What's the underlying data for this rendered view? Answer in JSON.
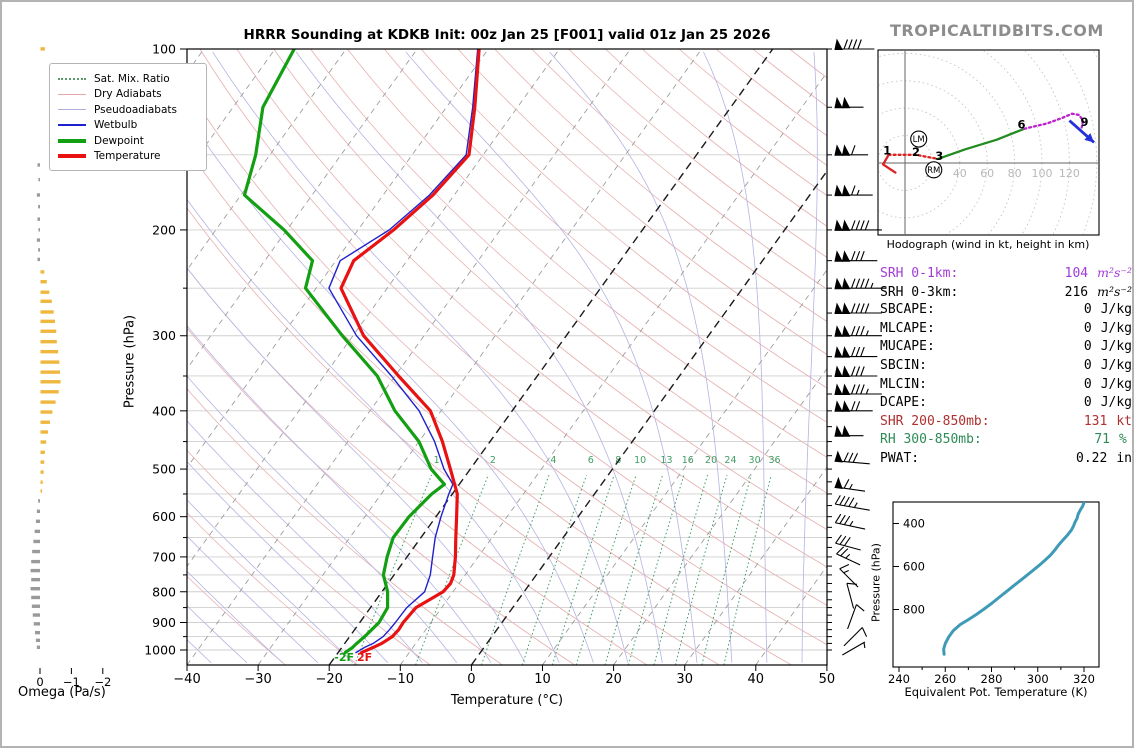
{
  "title": "HRRR Sounding at KDKB Init: 00z Jan 25 [F001] valid 01z Jan 25 2026",
  "branding": "TROPICALTIDBITS.COM",
  "skewt": {
    "xlabel": "Temperature (°C)",
    "ylabel": "Pressure (hPa)",
    "x_ticks": [
      -40,
      -30,
      -20,
      -10,
      0,
      10,
      20,
      30,
      40,
      50
    ],
    "p_ticks": [
      100,
      200,
      300,
      400,
      500,
      600,
      700,
      800,
      900,
      1000
    ],
    "mixratio_values": [
      1,
      2,
      4,
      6,
      8,
      10,
      13,
      16,
      20,
      24,
      30,
      36
    ],
    "surface_labels": [
      {
        "text": "-2F",
        "color": "#0fa00f"
      },
      {
        "text": "2F",
        "color": "#e81212"
      }
    ],
    "legend": [
      {
        "label": "Sat. Mix. Ratio",
        "style": "dotted",
        "color": "#5a9a6a"
      },
      {
        "label": "Dry Adiabats",
        "style": "thin",
        "color": "#e0a8a8"
      },
      {
        "label": "Pseudoadiabats",
        "style": "thin",
        "color": "#b0b0dc"
      },
      {
        "label": "Wetbulb",
        "style": "medium",
        "color": "#2020cc"
      },
      {
        "label": "Dewpoint",
        "style": "thick",
        "color": "#12a012"
      },
      {
        "label": "Temperature",
        "style": "thick",
        "color": "#e81212"
      }
    ]
  },
  "wind_barbs": {
    "units": "kt",
    "levels": [
      {
        "p": 100,
        "spd": 90,
        "rot": 0
      },
      {
        "p": 125,
        "spd": 100,
        "rot": 0
      },
      {
        "p": 150,
        "spd": 110,
        "rot": 0
      },
      {
        "p": 175,
        "spd": 115,
        "rot": 0
      },
      {
        "p": 200,
        "spd": 140,
        "rot": 0
      },
      {
        "p": 225,
        "spd": 130,
        "rot": 0
      },
      {
        "p": 250,
        "spd": 145,
        "rot": 0
      },
      {
        "p": 275,
        "spd": 140,
        "rot": 0
      },
      {
        "p": 300,
        "spd": 135,
        "rot": 0
      },
      {
        "p": 325,
        "spd": 130,
        "rot": 0
      },
      {
        "p": 350,
        "spd": 130,
        "rot": 0
      },
      {
        "p": 375,
        "spd": 135,
        "rot": 0
      },
      {
        "p": 400,
        "spd": 120,
        "rot": 0
      },
      {
        "p": 440,
        "spd": 100,
        "rot": 0
      },
      {
        "p": 487,
        "spd": 80,
        "rot": 5
      },
      {
        "p": 540,
        "spd": 65,
        "rot": 8
      },
      {
        "p": 578,
        "spd": 45,
        "rot": 10
      },
      {
        "p": 622,
        "spd": 35,
        "rot": 12
      },
      {
        "p": 675,
        "spd": 30,
        "rot": 15
      },
      {
        "p": 710,
        "spd": 25,
        "rot": 25
      },
      {
        "p": 765,
        "spd": 18,
        "rot": 45
      },
      {
        "p": 822,
        "spd": 12,
        "rot": 75
      },
      {
        "p": 890,
        "spd": 12,
        "rot": 110
      },
      {
        "p": 958,
        "spd": 10,
        "rot": 135
      },
      {
        "p": 1000,
        "spd": 8,
        "rot": 150
      }
    ]
  },
  "indices": {
    "rows": [
      {
        "label": "SRH 0-1km:",
        "value": "104",
        "unit": "m²s⁻²",
        "color": "#a23bd6",
        "unit_style": "math"
      },
      {
        "label": "SRH 0-3km:",
        "value": "216",
        "unit": "m²s⁻²",
        "color": "#000000",
        "unit_style": "math"
      },
      {
        "label": "SBCAPE:",
        "value": "0",
        "unit": "J/kg",
        "color": "#000000",
        "unit_style": ""
      },
      {
        "label": "MLCAPE:",
        "value": "0",
        "unit": "J/kg",
        "color": "#000000",
        "unit_style": ""
      },
      {
        "label": "MUCAPE:",
        "value": "0",
        "unit": "J/kg",
        "color": "#000000",
        "unit_style": ""
      },
      {
        "label": "SBCIN:",
        "value": "0",
        "unit": "J/kg",
        "color": "#000000",
        "unit_style": ""
      },
      {
        "label": "MLCIN:",
        "value": "0",
        "unit": "J/kg",
        "color": "#000000",
        "unit_style": ""
      },
      {
        "label": "DCAPE:",
        "value": "0",
        "unit": "J/kg",
        "color": "#000000",
        "unit_style": ""
      },
      {
        "label": "SHR 200-850mb:",
        "value": "131",
        "unit": "kt",
        "color": "#b03030",
        "unit_style": ""
      },
      {
        "label": "RH 300-850mb:",
        "value": "71",
        "unit": "%",
        "color": "#2e8b57",
        "unit_style": ""
      },
      {
        "label": "PWAT:",
        "value": "0.22",
        "unit": "in",
        "color": "#000000",
        "unit_style": ""
      }
    ]
  },
  "chart_data": [
    {
      "type": "line",
      "name": "skewt_sounding",
      "title": "HRRR Sounding at KDKB Init: 00z Jan 25 [F001] valid 01z Jan 25 2026",
      "xlabel": "Temperature (°C)",
      "ylabel": "Pressure (hPa)",
      "xlim": [
        -40,
        50
      ],
      "plim": [
        100,
        1050
      ],
      "series": [
        {
          "name": "Temperature",
          "color": "#e81212",
          "width": 3.2,
          "points": [
            [
              1010,
              -16.7
            ],
            [
              990,
              -15.6
            ],
            [
              975,
              -14.8
            ],
            [
              950,
              -14.0
            ],
            [
              925,
              -13.8
            ],
            [
              900,
              -13.9
            ],
            [
              850,
              -13.6
            ],
            [
              800,
              -11.4
            ],
            [
              775,
              -11.2
            ],
            [
              750,
              -11.6
            ],
            [
              700,
              -13.2
            ],
            [
              650,
              -15.1
            ],
            [
              600,
              -17.1
            ],
            [
              550,
              -19.3
            ],
            [
              500,
              -22.8
            ],
            [
              450,
              -26.7
            ],
            [
              400,
              -31.5
            ],
            [
              350,
              -39.5
            ],
            [
              300,
              -48.5
            ],
            [
              250,
              -56.5
            ],
            [
              225,
              -57.5
            ],
            [
              200,
              -55.0
            ],
            [
              175,
              -53.0
            ],
            [
              150,
              -52.0
            ],
            [
              125,
              -56.0
            ],
            [
              100,
              -61.3
            ]
          ]
        },
        {
          "name": "Dewpoint",
          "color": "#12a012",
          "width": 3.2,
          "points": [
            [
              1010,
              -19.0
            ],
            [
              990,
              -18.5
            ],
            [
              975,
              -18.3
            ],
            [
              950,
              -17.9
            ],
            [
              925,
              -17.6
            ],
            [
              900,
              -17.3
            ],
            [
              850,
              -17.6
            ],
            [
              800,
              -19.2
            ],
            [
              750,
              -21.5
            ],
            [
              700,
              -22.8
            ],
            [
              650,
              -23.9
            ],
            [
              600,
              -23.8
            ],
            [
              550,
              -22.9
            ],
            [
              530,
              -22.1
            ],
            [
              500,
              -25.5
            ],
            [
              450,
              -30.0
            ],
            [
              400,
              -36.5
            ],
            [
              350,
              -42.5
            ],
            [
              300,
              -51.5
            ],
            [
              250,
              -61.5
            ],
            [
              225,
              -63.3
            ],
            [
              200,
              -70.4
            ],
            [
              175,
              -79.5
            ],
            [
              150,
              -82.0
            ],
            [
              125,
              -85.8
            ],
            [
              100,
              -87.3
            ]
          ]
        },
        {
          "name": "Wetbulb",
          "color": "#2020cc",
          "width": 1.4,
          "points": [
            [
              1010,
              -17.5
            ],
            [
              990,
              -16.8
            ],
            [
              975,
              -16.0
            ],
            [
              950,
              -15.3
            ],
            [
              925,
              -15.1
            ],
            [
              900,
              -15.0
            ],
            [
              850,
              -14.9
            ],
            [
              800,
              -14.0
            ],
            [
              750,
              -14.9
            ],
            [
              700,
              -16.4
            ],
            [
              650,
              -18.0
            ],
            [
              600,
              -19.3
            ],
            [
              550,
              -20.5
            ],
            [
              530,
              -20.9
            ],
            [
              500,
              -23.7
            ],
            [
              450,
              -27.8
            ],
            [
              400,
              -33.1
            ],
            [
              350,
              -40.5
            ],
            [
              300,
              -49.5
            ],
            [
              250,
              -58.2
            ],
            [
              225,
              -59.4
            ],
            [
              200,
              -55.6
            ],
            [
              175,
              -53.5
            ],
            [
              150,
              -52.4
            ],
            [
              125,
              -56.3
            ],
            [
              100,
              -61.5
            ]
          ]
        }
      ]
    },
    {
      "type": "line",
      "name": "hodograph",
      "caption": "Hodograph (wind in kt, height in km)",
      "ring_step_kt": 20,
      "ring_labels": [
        20,
        40,
        60,
        80,
        100,
        120
      ],
      "segments": [
        {
          "name": "0-1km",
          "color": "#dd2222",
          "width": 2.3,
          "dash": "",
          "points": [
            [
              -7,
              -7
            ],
            [
              -16,
              -1
            ],
            [
              -12,
              6
            ]
          ]
        },
        {
          "name": "1-3km",
          "color": "#dd2222",
          "width": 2.3,
          "dash": "2,3",
          "points": [
            [
              -12,
              6
            ],
            [
              8,
              6
            ],
            [
              24,
              3
            ]
          ]
        },
        {
          "name": "3-6km",
          "color": "#228b22",
          "width": 2.3,
          "dash": "",
          "points": [
            [
              24,
              3
            ],
            [
              44,
              10
            ],
            [
              67,
              17
            ],
            [
              87,
              25
            ]
          ]
        },
        {
          "name": "6-9km",
          "color": "#bb22cc",
          "width": 2.3,
          "dash": "2,3",
          "points": [
            [
              87,
              25
            ],
            [
              104,
              29
            ],
            [
              115,
              33
            ],
            [
              122,
              36
            ],
            [
              127,
              35
            ],
            [
              130,
              31
            ],
            [
              129,
              26
            ]
          ]
        }
      ],
      "height_labels": [
        {
          "text": "1",
          "u": -13,
          "v": 9
        },
        {
          "text": "2",
          "u": 8,
          "v": 8
        },
        {
          "text": "3",
          "u": 25,
          "v": 5
        },
        {
          "text": "6",
          "u": 85,
          "v": 28
        },
        {
          "text": "9",
          "u": 131,
          "v": 30
        }
      ],
      "storm_motions": [
        {
          "label": "LM",
          "u": 10,
          "v": 17.5
        },
        {
          "label": "RM",
          "u": 21,
          "v": -5
        }
      ],
      "arrow": {
        "color": "#2430d8",
        "from": [
          120,
          31
        ],
        "to": [
          138,
          15
        ]
      }
    },
    {
      "type": "bar",
      "name": "omega_profile",
      "xlabel": "Omega (Pa/s)",
      "ticks": [
        0,
        -1,
        -2
      ],
      "ascent_color": "#efb73e",
      "descent_color": "#9a9a9a",
      "bars": [
        {
          "p": 100,
          "v": -0.14
        },
        {
          "p": 156,
          "v": 0.08
        },
        {
          "p": 165,
          "v": 0.05
        },
        {
          "p": 175,
          "v": 0.1
        },
        {
          "p": 183,
          "v": 0.06
        },
        {
          "p": 192,
          "v": 0.08
        },
        {
          "p": 200,
          "v": 0.05
        },
        {
          "p": 208,
          "v": 0.1
        },
        {
          "p": 216,
          "v": 0.06
        },
        {
          "p": 224,
          "v": 0.08
        },
        {
          "p": 235,
          "v": -0.12
        },
        {
          "p": 244,
          "v": -0.2
        },
        {
          "p": 254,
          "v": -0.28
        },
        {
          "p": 263,
          "v": -0.36
        },
        {
          "p": 274,
          "v": -0.42
        },
        {
          "p": 284,
          "v": -0.46
        },
        {
          "p": 295,
          "v": -0.5
        },
        {
          "p": 307,
          "v": -0.52
        },
        {
          "p": 319,
          "v": -0.56
        },
        {
          "p": 332,
          "v": -0.6
        },
        {
          "p": 345,
          "v": -0.62
        },
        {
          "p": 358,
          "v": -0.64
        },
        {
          "p": 372,
          "v": -0.58
        },
        {
          "p": 387,
          "v": -0.48
        },
        {
          "p": 402,
          "v": -0.38
        },
        {
          "p": 418,
          "v": -0.3
        },
        {
          "p": 434,
          "v": -0.24
        },
        {
          "p": 451,
          "v": -0.18
        },
        {
          "p": 469,
          "v": -0.14
        },
        {
          "p": 487,
          "v": -0.12
        },
        {
          "p": 506,
          "v": -0.1
        },
        {
          "p": 526,
          "v": -0.07
        },
        {
          "p": 544,
          "v": -0.05
        },
        {
          "p": 565,
          "v": 0.06
        },
        {
          "p": 588,
          "v": 0.1
        },
        {
          "p": 611,
          "v": 0.13
        },
        {
          "p": 635,
          "v": 0.17
        },
        {
          "p": 660,
          "v": 0.21
        },
        {
          "p": 686,
          "v": 0.25
        },
        {
          "p": 713,
          "v": 0.28
        },
        {
          "p": 738,
          "v": 0.3
        },
        {
          "p": 764,
          "v": 0.28
        },
        {
          "p": 791,
          "v": 0.3
        },
        {
          "p": 818,
          "v": 0.28
        },
        {
          "p": 846,
          "v": 0.26
        },
        {
          "p": 875,
          "v": 0.23
        },
        {
          "p": 905,
          "v": 0.2
        },
        {
          "p": 936,
          "v": 0.16
        },
        {
          "p": 964,
          "v": 0.13
        },
        {
          "p": 990,
          "v": 0.1
        }
      ]
    },
    {
      "type": "line",
      "name": "theta_e_profile",
      "xlabel": "Equivalent Pot. Temperature (K)",
      "ylabel": "Pressure (hPa)",
      "color": "#3f9ab8",
      "x_ticks": [
        240,
        260,
        280,
        300,
        320
      ],
      "y_ticks": [
        400,
        600,
        800
      ],
      "xlim": [
        237,
        327
      ],
      "plim": [
        300,
        1065
      ],
      "points": [
        [
          259.5,
          1008
        ],
        [
          259.3,
          985
        ],
        [
          260,
          958
        ],
        [
          261.5,
          928
        ],
        [
          263.5,
          898
        ],
        [
          266.5,
          870
        ],
        [
          270,
          847
        ],
        [
          273.5,
          823
        ],
        [
          276.5,
          800
        ],
        [
          280,
          772
        ],
        [
          283.5,
          742
        ],
        [
          287,
          712
        ],
        [
          290.5,
          682
        ],
        [
          294,
          652
        ],
        [
          297.5,
          622
        ],
        [
          300.5,
          596
        ],
        [
          303,
          572
        ],
        [
          305.5,
          547
        ],
        [
          307.5,
          522
        ],
        [
          309,
          500
        ],
        [
          311,
          476
        ],
        [
          313,
          452
        ],
        [
          314.5,
          431
        ],
        [
          315.5,
          411
        ],
        [
          316,
          396
        ],
        [
          317,
          376
        ],
        [
          317.5,
          356
        ],
        [
          318.5,
          336
        ],
        [
          319.5,
          318
        ],
        [
          320,
          303
        ]
      ]
    }
  ]
}
